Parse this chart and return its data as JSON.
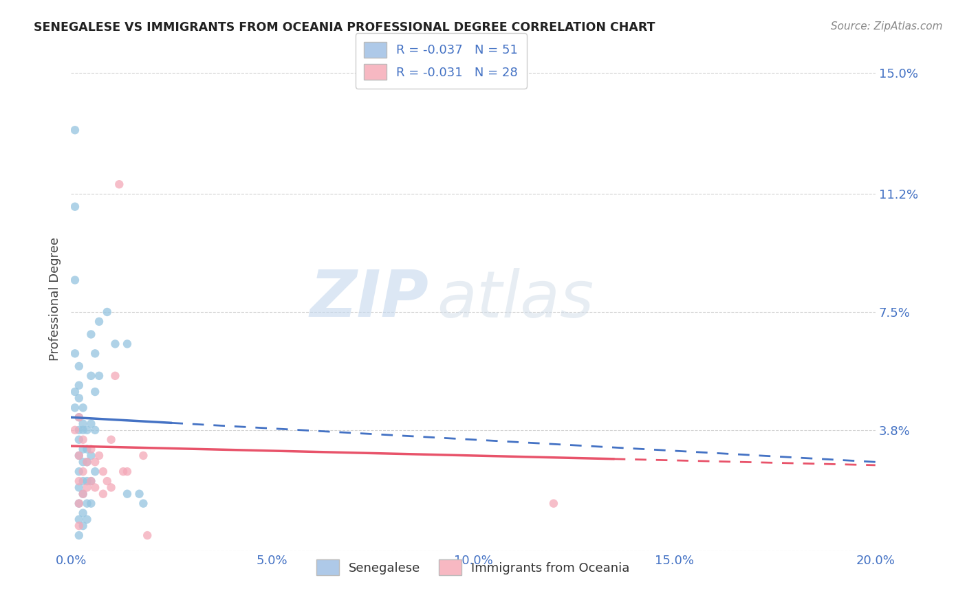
{
  "title": "SENEGALESE VS IMMIGRANTS FROM OCEANIA PROFESSIONAL DEGREE CORRELATION CHART",
  "source": "Source: ZipAtlas.com",
  "ylabel": "Professional Degree",
  "legend_labels": [
    "Senegalese",
    "Immigrants from Oceania"
  ],
  "R_blue": -0.037,
  "N_blue": 51,
  "R_pink": -0.031,
  "N_pink": 28,
  "blue_color": "#94c4e0",
  "pink_color": "#f4a8b8",
  "blue_scatter": [
    [
      0.001,
      0.132
    ],
    [
      0.001,
      0.108
    ],
    [
      0.001,
      0.085
    ],
    [
      0.001,
      0.062
    ],
    [
      0.001,
      0.05
    ],
    [
      0.001,
      0.045
    ],
    [
      0.002,
      0.058
    ],
    [
      0.002,
      0.052
    ],
    [
      0.002,
      0.048
    ],
    [
      0.002,
      0.042
    ],
    [
      0.002,
      0.038
    ],
    [
      0.002,
      0.035
    ],
    [
      0.002,
      0.03
    ],
    [
      0.002,
      0.025
    ],
    [
      0.002,
      0.02
    ],
    [
      0.002,
      0.015
    ],
    [
      0.002,
      0.01
    ],
    [
      0.002,
      0.005
    ],
    [
      0.003,
      0.045
    ],
    [
      0.003,
      0.04
    ],
    [
      0.003,
      0.038
    ],
    [
      0.003,
      0.032
    ],
    [
      0.003,
      0.028
    ],
    [
      0.003,
      0.022
    ],
    [
      0.003,
      0.018
    ],
    [
      0.003,
      0.012
    ],
    [
      0.003,
      0.008
    ],
    [
      0.004,
      0.038
    ],
    [
      0.004,
      0.032
    ],
    [
      0.004,
      0.028
    ],
    [
      0.004,
      0.022
    ],
    [
      0.004,
      0.015
    ],
    [
      0.004,
      0.01
    ],
    [
      0.005,
      0.068
    ],
    [
      0.005,
      0.055
    ],
    [
      0.005,
      0.04
    ],
    [
      0.005,
      0.03
    ],
    [
      0.005,
      0.022
    ],
    [
      0.005,
      0.015
    ],
    [
      0.006,
      0.062
    ],
    [
      0.006,
      0.05
    ],
    [
      0.006,
      0.038
    ],
    [
      0.006,
      0.025
    ],
    [
      0.007,
      0.072
    ],
    [
      0.007,
      0.055
    ],
    [
      0.009,
      0.075
    ],
    [
      0.011,
      0.065
    ],
    [
      0.014,
      0.065
    ],
    [
      0.014,
      0.018
    ],
    [
      0.017,
      0.018
    ],
    [
      0.018,
      0.015
    ]
  ],
  "pink_scatter": [
    [
      0.001,
      0.038
    ],
    [
      0.002,
      0.042
    ],
    [
      0.002,
      0.03
    ],
    [
      0.002,
      0.022
    ],
    [
      0.002,
      0.015
    ],
    [
      0.002,
      0.008
    ],
    [
      0.003,
      0.035
    ],
    [
      0.003,
      0.025
    ],
    [
      0.003,
      0.018
    ],
    [
      0.004,
      0.028
    ],
    [
      0.004,
      0.02
    ],
    [
      0.005,
      0.032
    ],
    [
      0.005,
      0.022
    ],
    [
      0.006,
      0.028
    ],
    [
      0.006,
      0.02
    ],
    [
      0.007,
      0.03
    ],
    [
      0.008,
      0.025
    ],
    [
      0.008,
      0.018
    ],
    [
      0.009,
      0.022
    ],
    [
      0.01,
      0.02
    ],
    [
      0.01,
      0.035
    ],
    [
      0.011,
      0.055
    ],
    [
      0.012,
      0.115
    ],
    [
      0.013,
      0.025
    ],
    [
      0.014,
      0.025
    ],
    [
      0.018,
      0.03
    ],
    [
      0.019,
      0.005
    ],
    [
      0.12,
      0.015
    ]
  ],
  "xlim": [
    0.0,
    0.2
  ],
  "ylim": [
    0.0,
    0.158
  ],
  "yticks": [
    0.0,
    0.038,
    0.075,
    0.112,
    0.15
  ],
  "ytick_labels": [
    "",
    "3.8%",
    "7.5%",
    "11.2%",
    "15.0%"
  ],
  "xticks": [
    0.0,
    0.05,
    0.1,
    0.15,
    0.2
  ],
  "xtick_labels": [
    "0.0%",
    "5.0%",
    "10.0%",
    "15.0%",
    "20.0%"
  ],
  "watermark_zip": "ZIP",
  "watermark_atlas": "atlas",
  "background_color": "#ffffff",
  "grid_color": "#cccccc",
  "blue_line_solid_end": 0.03,
  "pink_line_solid_end": 0.13
}
